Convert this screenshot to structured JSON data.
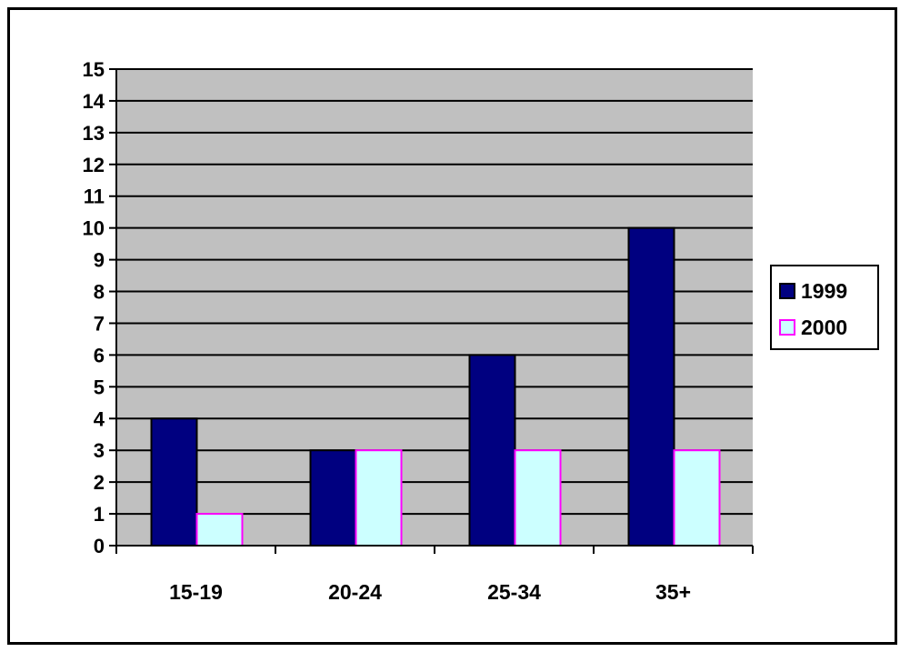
{
  "chart_data": {
    "type": "bar",
    "categories": [
      "15-19",
      "20-24",
      "25-34",
      "35+"
    ],
    "series": [
      {
        "name": "1999",
        "values": [
          4,
          3,
          6,
          10
        ],
        "color": "#000080",
        "stroke": "#000000"
      },
      {
        "name": "2000",
        "values": [
          1,
          3,
          3,
          3
        ],
        "color": "#ccffff",
        "stroke": "#ff00ff"
      }
    ],
    "title": "",
    "xlabel": "",
    "ylabel": "",
    "ylim": [
      0,
      15
    ],
    "yticks": [
      0,
      1,
      2,
      3,
      4,
      5,
      6,
      7,
      8,
      9,
      10,
      11,
      12,
      13,
      14,
      15
    ],
    "grid": true,
    "plot_background": "#c0c0c0",
    "legend_position": "right"
  }
}
